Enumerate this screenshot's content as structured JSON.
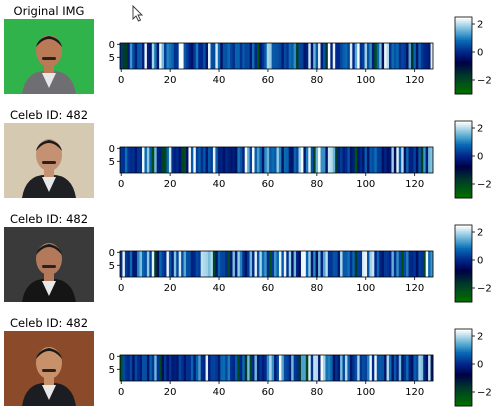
{
  "rows": [
    {
      "title": "Original IMG",
      "photo_desc": "man in grey jacket against green backdrop",
      "photo_bg": "#2fb34a",
      "skin": "#b97a55",
      "jacket": "#6f6f73",
      "seed": 11
    },
    {
      "title": "Celeb ID: 482",
      "photo_desc": "man with mustache in dark suit, beige backdrop",
      "photo_bg": "#d6c9b2",
      "skin": "#c49273",
      "jacket": "#1f2024",
      "seed": 23
    },
    {
      "title": "Celeb ID: 482",
      "photo_desc": "man with mustache in dark suit, dark backdrop",
      "photo_bg": "#3a3a3a",
      "skin": "#b27a5a",
      "jacket": "#151515",
      "seed": 37
    },
    {
      "title": "Celeb ID: 482",
      "photo_desc": "man with mustache in dark suit, brown backdrop",
      "photo_bg": "#8b4a2a",
      "skin": "#c9916a",
      "jacket": "#1c1d22",
      "seed": 53
    }
  ],
  "chart_data": [
    {
      "type": "heatmap",
      "title": "",
      "columns": 128,
      "rows": 10,
      "xticks": [
        "0",
        "20",
        "40",
        "60",
        "80",
        "100",
        "120"
      ],
      "yticks": [
        "0",
        "5"
      ],
      "colorbar_ticks": [
        "2",
        "0",
        "-2"
      ],
      "vmin": -3,
      "vmax": 2.5,
      "colormap": "ocean_r"
    },
    {
      "type": "heatmap",
      "title": "",
      "columns": 128,
      "rows": 10,
      "xticks": [
        "0",
        "20",
        "40",
        "60",
        "80",
        "100",
        "120"
      ],
      "yticks": [
        "0",
        "5"
      ],
      "colorbar_ticks": [
        "2",
        "0",
        "-2"
      ],
      "vmin": -3,
      "vmax": 2.5,
      "colormap": "ocean_r"
    },
    {
      "type": "heatmap",
      "title": "",
      "columns": 128,
      "rows": 10,
      "xticks": [
        "0",
        "20",
        "40",
        "60",
        "80",
        "100",
        "120"
      ],
      "yticks": [
        "0",
        "5"
      ],
      "colorbar_ticks": [
        "2",
        "0",
        "-2"
      ],
      "vmin": -3,
      "vmax": 2.5,
      "colormap": "ocean_r"
    },
    {
      "type": "heatmap",
      "title": "",
      "columns": 128,
      "rows": 10,
      "xticks": [
        "0",
        "20",
        "40",
        "60",
        "80",
        "100",
        "120"
      ],
      "yticks": [
        "0",
        "5"
      ],
      "colorbar_ticks": [
        "2",
        "0",
        "-2"
      ],
      "vmin": -3,
      "vmax": 2.5,
      "colormap": "ocean_r"
    }
  ],
  "cursor_icon": "mouse-pointer-icon"
}
